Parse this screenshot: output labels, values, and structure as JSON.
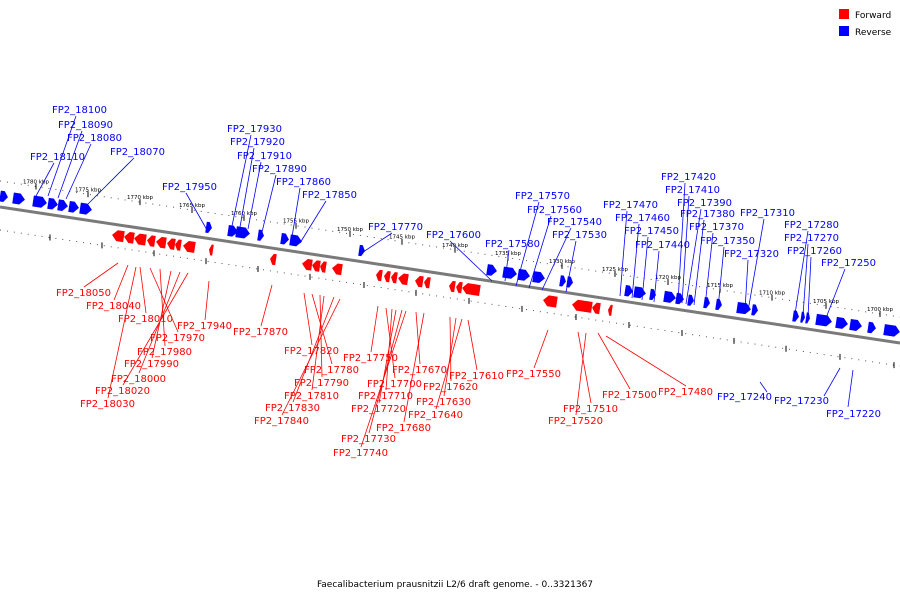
{
  "legend": {
    "items": [
      {
        "label": "Forward",
        "color": "#ff0000"
      },
      {
        "label": "Reverse",
        "color": "#0000ff"
      }
    ]
  },
  "caption": "Faecalibacterium prausnitzii L2/6 draft genome. - 0..3321367",
  "colors": {
    "forward": "#ff0000",
    "reverse": "#0000ff",
    "backbone": "#808080"
  },
  "scale_ticks": [
    "1780 kbp",
    "1775 kbp",
    "1770 kbp",
    "1765 kbp",
    "1760 kbp",
    "1755 kbp",
    "1750 kbp",
    "1745 kbp",
    "1740 kbp",
    "1735 kbp",
    "1730 kbp",
    "1725 kbp",
    "1720 kbp",
    "1715 kbp",
    "1710 kbp",
    "1705 kbp",
    "1700 kbp"
  ],
  "reverse_genes": [
    "FP2_18100",
    "FP2_18090",
    "FP2_18080",
    "FP2_18110",
    "FP2_18070",
    "FP2_17930",
    "FP2_17920",
    "FP2_17910",
    "FP2_17890",
    "FP2_17860",
    "FP2_17950",
    "FP2_17850",
    "FP2_17770",
    "FP2_17600",
    "FP2_17570",
    "FP2_17560",
    "FP2_17540",
    "FP2_17530",
    "FP2_17580",
    "FP2_17470",
    "FP2_17460",
    "FP2_17450",
    "FP2_17440",
    "FP2_17420",
    "FP2_17410",
    "FP2_17390",
    "FP2_17380",
    "FP2_17370",
    "FP2_17350",
    "FP2_17320",
    "FP2_17310",
    "FP2_17280",
    "FP2_17270",
    "FP2_17260",
    "FP2_17250",
    "FP2_17240",
    "FP2_17230",
    "FP2_17220"
  ],
  "forward_genes": [
    "FP2_18050",
    "FP2_18040",
    "FP2_18010",
    "FP2_17970",
    "FP2_17980",
    "FP2_17990",
    "FP2_18000",
    "FP2_18020",
    "FP2_18030",
    "FP2_17940",
    "FP2_17870",
    "FP2_17820",
    "FP2_17780",
    "FP2_17790",
    "FP2_17810",
    "FP2_17830",
    "FP2_17840",
    "FP2_17750",
    "FP2_17700",
    "FP2_17710",
    "FP2_17720",
    "FP2_17730",
    "FP2_17740",
    "FP2_17670",
    "FP2_17680",
    "FP2_17620",
    "FP2_17630",
    "FP2_17640",
    "FP2_17610",
    "FP2_17550",
    "FP2_17510",
    "FP2_17520",
    "FP2_17500",
    "FP2_17480"
  ]
}
